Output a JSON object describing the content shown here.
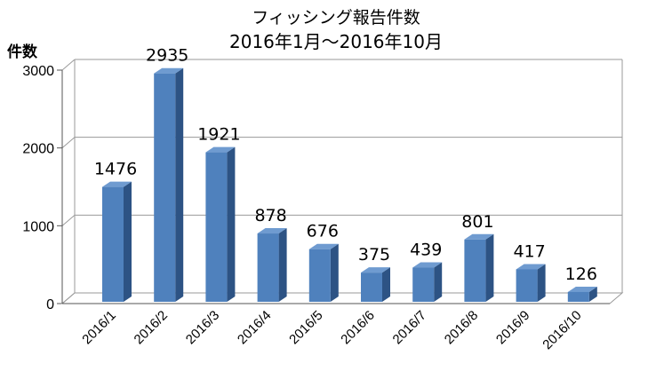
{
  "chart_data": {
    "type": "bar",
    "title": "フィッシング報告件数",
    "subtitle": "2016年1月～2016年10月",
    "xlabel": "",
    "ylabel": "件数",
    "categories": [
      "2016/1",
      "2016/2",
      "2016/3",
      "2016/4",
      "2016/5",
      "2016/6",
      "2016/7",
      "2016/8",
      "2016/9",
      "2016/10"
    ],
    "values": [
      1476,
      2935,
      1921,
      878,
      676,
      375,
      439,
      801,
      417,
      126
    ],
    "ylim": [
      0,
      3000
    ],
    "yticks": [
      0,
      1000,
      2000,
      3000
    ],
    "grid": true,
    "legend": "none",
    "colors": {
      "bar_front": "#4f81bd",
      "bar_side": "#2d5384",
      "bar_top": "#6f9bd0",
      "grid": "#9a9a9a"
    }
  }
}
